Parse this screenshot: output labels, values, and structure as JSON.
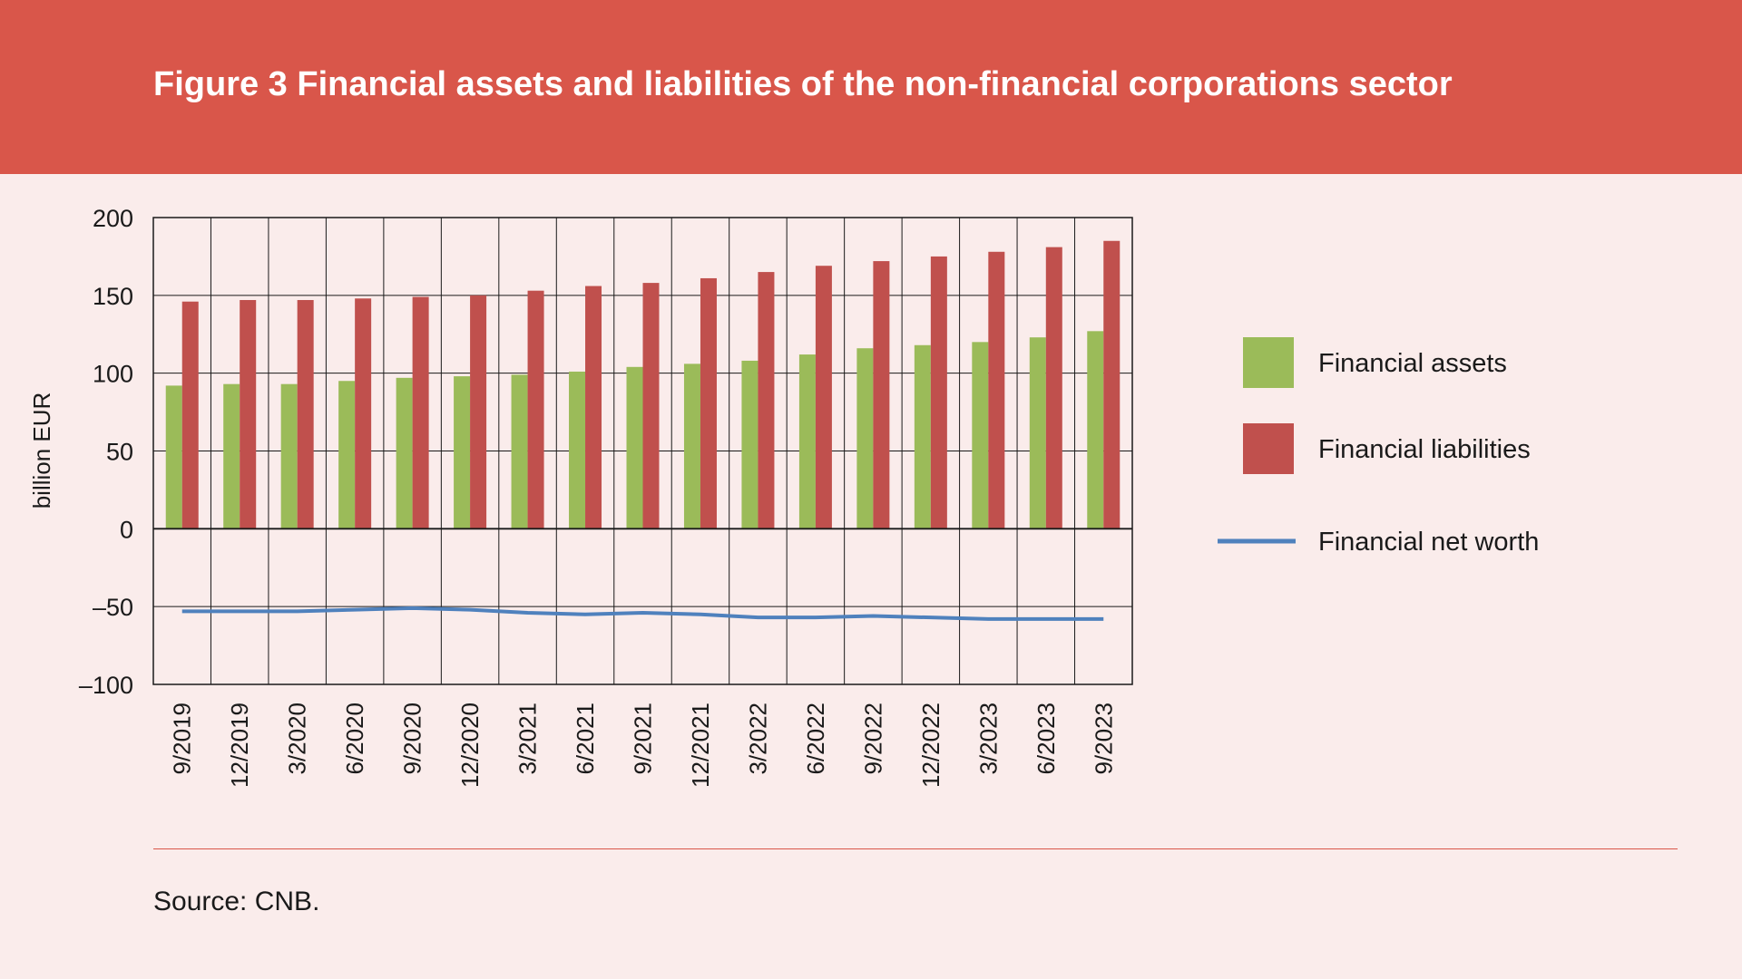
{
  "title": "Figure 3 Financial assets and liabilities of the non-financial corporations sector",
  "source": "Source: CNB.",
  "colors": {
    "header": "#d9564a",
    "background": "#faeceb",
    "assets": "#9bbb59",
    "liabilities": "#c0504d",
    "net_worth": "#4f81bd"
  },
  "chart_data": {
    "type": "bar",
    "ylabel": "billion EUR",
    "ylim": [
      -100,
      200
    ],
    "yticks": [
      200,
      150,
      100,
      50,
      0,
      -50,
      -100
    ],
    "ytick_labels": [
      "200",
      "150",
      "100",
      "50",
      "0",
      "–50",
      "–100"
    ],
    "categories": [
      "9/2019",
      "12/2019",
      "3/2020",
      "6/2020",
      "9/2020",
      "12/2020",
      "3/2021",
      "6/2021",
      "9/2021",
      "12/2021",
      "3/2022",
      "6/2022",
      "9/2022",
      "12/2022",
      "3/2023",
      "6/2023",
      "9/2023"
    ],
    "grid": true,
    "legend_position": "right",
    "series": [
      {
        "name": "Financial assets",
        "kind": "bar",
        "color": "#9bbb59",
        "values": [
          92,
          93,
          93,
          95,
          97,
          98,
          99,
          101,
          104,
          106,
          108,
          112,
          116,
          118,
          120,
          123,
          127
        ]
      },
      {
        "name": "Financial liabilities",
        "kind": "bar",
        "color": "#c0504d",
        "values": [
          146,
          147,
          147,
          148,
          149,
          150,
          153,
          156,
          158,
          161,
          165,
          169,
          172,
          175,
          178,
          181,
          185
        ]
      },
      {
        "name": "Financial net worth",
        "kind": "line",
        "color": "#4f81bd",
        "values": [
          -53,
          -53,
          -53,
          -52,
          -51,
          -52,
          -54,
          -55,
          -54,
          -55,
          -57,
          -57,
          -56,
          -57,
          -58,
          -58,
          -58
        ]
      }
    ]
  }
}
